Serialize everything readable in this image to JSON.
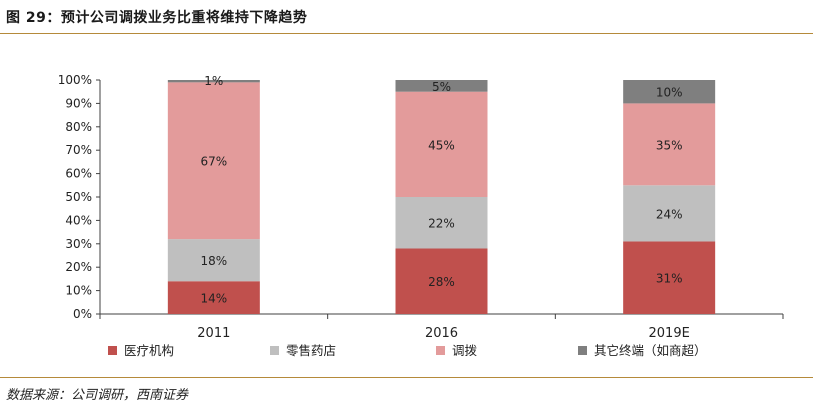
{
  "figure": {
    "title": "图 29：预计公司调拨业务比重将维持下降趋势",
    "source": "数据来源：公司调研，西南证券"
  },
  "chart_data": {
    "type": "bar",
    "stacked": true,
    "categories": [
      "2011",
      "2016",
      "2019E"
    ],
    "series": [
      {
        "name": "医疗机构",
        "color": "#c0504d",
        "values": [
          14,
          28,
          31
        ]
      },
      {
        "name": "零售药店",
        "color": "#bfbfbf",
        "values": [
          18,
          22,
          24
        ]
      },
      {
        "name": "调拨",
        "color": "#e39b9b",
        "values": [
          67,
          45,
          35
        ]
      },
      {
        "name": "其它终端（如商超）",
        "color": "#7f7f7f",
        "values": [
          1,
          5,
          10
        ]
      }
    ],
    "data_labels": [
      [
        "14%",
        "18%",
        "67%",
        "1%"
      ],
      [
        "28%",
        "22%",
        "45%",
        "5%"
      ],
      [
        "31%",
        "24%",
        "35%",
        "10%"
      ]
    ],
    "y_ticks": [
      "0%",
      "10%",
      "20%",
      "30%",
      "40%",
      "50%",
      "60%",
      "70%",
      "80%",
      "90%",
      "100%"
    ],
    "ylim": [
      0,
      100
    ],
    "grid": false,
    "legend_position": "bottom"
  }
}
